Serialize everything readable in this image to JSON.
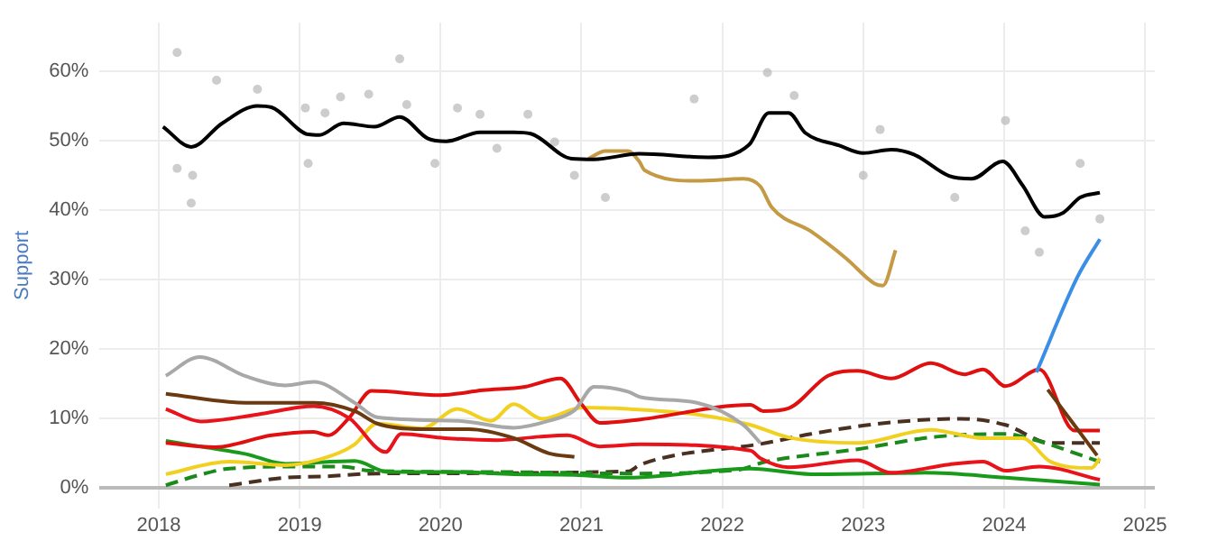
{
  "chart_data": {
    "type": "line",
    "ylabel": "Support",
    "xlim": [
      2017.58,
      2025.07
    ],
    "ylim": [
      -3,
      67
    ],
    "xticks": [
      2018,
      2019,
      2020,
      2021,
      2022,
      2023,
      2024,
      2025
    ],
    "yticks": [
      {
        "value": 0,
        "label": "0%"
      },
      {
        "value": 10,
        "label": "10%"
      },
      {
        "value": 20,
        "label": "20%"
      },
      {
        "value": 30,
        "label": "30%"
      },
      {
        "value": 40,
        "label": "40%"
      },
      {
        "value": 50,
        "label": "50%"
      },
      {
        "value": 60,
        "label": "60%"
      }
    ],
    "grid": true,
    "legend": false,
    "marker": "none",
    "series": [
      {
        "type": "scatter",
        "marker": "circle",
        "color": "#b4b4b4",
        "x": [
          2018.13,
          2018.13,
          2018.23,
          2018.24,
          2018.41,
          2018.7,
          2019.04,
          2019.06,
          2019.18,
          2019.29,
          2019.49,
          2019.71,
          2019.76,
          2019.96,
          2020.12,
          2020.28,
          2020.4,
          2020.62,
          2020.81,
          2020.95,
          2021.17,
          2021.8,
          2022.32,
          2022.51,
          2023.0,
          2023.12,
          2023.65,
          2024.01,
          2024.15,
          2024.25,
          2024.54,
          2024.68
        ],
        "values": [
          62.7,
          46.0,
          41.0,
          45.0,
          58.7,
          57.4,
          54.7,
          46.7,
          54.0,
          56.3,
          56.7,
          61.8,
          55.2,
          46.7,
          54.7,
          53.8,
          48.9,
          53.8,
          49.8,
          45.0,
          41.8,
          56.0,
          59.8,
          56.5,
          45.0,
          51.6,
          41.8,
          52.9,
          37.0,
          33.9,
          46.7,
          38.7
        ]
      },
      {
        "color": "#000000",
        "x": [
          2018.03,
          2018.23,
          2018.45,
          2018.7,
          2018.8,
          2019.06,
          2019.14,
          2019.31,
          2019.53,
          2019.71,
          2019.91,
          2020.04,
          2020.28,
          2020.52,
          2020.64,
          2020.93,
          2021.09,
          2021.41,
          2021.9,
          2022.19,
          2022.33,
          2022.47,
          2022.59,
          2022.83,
          2023.0,
          2023.2,
          2023.36,
          2023.61,
          2023.77,
          2023.99,
          2024.13,
          2024.29,
          2024.42,
          2024.54,
          2024.68
        ],
        "values": [
          52.0,
          49.1,
          52.5,
          55.0,
          54.8,
          50.9,
          50.8,
          52.5,
          52.0,
          53.4,
          50.3,
          49.9,
          51.2,
          51.2,
          51.0,
          47.4,
          47.3,
          48.1,
          47.6,
          49.4,
          54.0,
          54.0,
          51.1,
          49.3,
          48.2,
          48.7,
          48.0,
          44.9,
          44.5,
          47.0,
          43.6,
          39.0,
          39.6,
          41.8,
          42.5
        ]
      },
      {
        "color": "#c49a45",
        "x": [
          2021.05,
          2021.17,
          2021.33,
          2021.41,
          2021.45,
          2021.82,
          2022.15,
          2022.27,
          2022.35,
          2022.63,
          2022.88,
          2023.08,
          2023.14,
          2023.23
        ],
        "values": [
          47.4,
          48.5,
          48.5,
          47.0,
          45.7,
          44.2,
          44.5,
          43.4,
          40.4,
          36.9,
          33.0,
          29.4,
          29.1,
          34.2
        ]
      },
      {
        "color": "#3a8ee6",
        "x": [
          2024.23,
          2024.52,
          2024.68
        ],
        "values": [
          16.6,
          30.3,
          35.8
        ]
      },
      {
        "color": "#a8a8a8",
        "x": [
          2018.05,
          2018.29,
          2018.62,
          2018.9,
          2019.1,
          2019.39,
          2019.55,
          2020.12,
          2020.52,
          2020.77,
          2020.95,
          2021.09,
          2021.33,
          2021.42,
          2021.82,
          2022.15,
          2022.27
        ],
        "values": [
          16.1,
          18.8,
          16.0,
          14.7,
          15.2,
          12.2,
          10.1,
          9.6,
          8.6,
          9.6,
          11.1,
          14.5,
          13.8,
          13.0,
          12.2,
          9.0,
          6.4
        ]
      },
      {
        "color": "#6b3a10",
        "x": [
          2018.05,
          2018.62,
          2019.1,
          2019.39,
          2019.55,
          2019.87,
          2020.2,
          2020.52,
          2020.77,
          2020.95,
          2022.6,
          2024.31,
          2024.66
        ],
        "values": [
          13.5,
          12.2,
          12.2,
          11.0,
          9.2,
          8.4,
          8.4,
          7.1,
          4.9,
          4.4,
          null,
          14.1,
          4.6
        ]
      },
      {
        "color": "#e8131b",
        "x": [
          2018.05,
          2018.3,
          2018.7,
          2019.1,
          2019.35,
          2019.61,
          2019.72,
          2020.03,
          2020.4,
          2020.7,
          2020.9,
          2021.13,
          2021.42,
          2022.2,
          2022.27,
          2022.47,
          2022.96,
          2023.2,
          2023.61,
          2023.85,
          2024.01,
          2024.25,
          2024.68
        ],
        "values": [
          11.3,
          9.5,
          10.5,
          11.7,
          10.0,
          5.1,
          7.7,
          7.1,
          6.8,
          7.3,
          7.5,
          5.9,
          6.2,
          5.3,
          4.2,
          2.9,
          3.9,
          2.1,
          3.3,
          3.7,
          2.4,
          3.0,
          1.1
        ]
      },
      {
        "color": "#e01010",
        "x": [
          2018.05,
          2018.4,
          2018.8,
          2019.1,
          2019.2,
          2019.35,
          2019.51,
          2020.0,
          2020.3,
          2020.6,
          2020.85,
          2021.0,
          2021.13,
          2021.42,
          2022.2,
          2022.29,
          2022.47,
          2022.75,
          2022.96,
          2023.2,
          2023.48,
          2023.72,
          2023.85,
          2024.01,
          2024.25,
          2024.5,
          2024.68
        ],
        "values": [
          6.4,
          5.8,
          7.5,
          8.0,
          7.5,
          10.0,
          13.9,
          13.3,
          14.0,
          14.5,
          15.7,
          12.0,
          9.3,
          9.8,
          11.9,
          11.0,
          11.4,
          16.1,
          16.8,
          15.7,
          17.9,
          16.3,
          17.0,
          14.6,
          17.0,
          8.2,
          8.2
        ]
      },
      {
        "color": "#f2d022",
        "x": [
          2018.05,
          2018.5,
          2018.9,
          2019.23,
          2019.39,
          2019.55,
          2019.87,
          2020.12,
          2020.36,
          2020.52,
          2020.72,
          2021.01,
          2021.33,
          2021.82,
          2022.2,
          2022.47,
          2022.96,
          2023.48,
          2023.85,
          2024.13,
          2024.33,
          2024.62,
          2024.68
        ],
        "values": [
          1.9,
          3.7,
          3.2,
          4.6,
          6.2,
          9.2,
          8.5,
          11.3,
          9.6,
          12.0,
          9.9,
          11.5,
          11.3,
          10.5,
          9.0,
          7.2,
          6.4,
          8.3,
          7.1,
          7.1,
          3.7,
          2.8,
          4.2
        ]
      },
      {
        "color": "#1a9a1a",
        "x": [
          2018.05,
          2018.29,
          2018.62,
          2018.9,
          2019.39,
          2019.63,
          2020.12,
          2020.52,
          2020.95,
          2021.33,
          2022.2,
          2022.63,
          2023.44,
          2024.01,
          2024.68
        ],
        "values": [
          6.7,
          5.9,
          4.8,
          3.4,
          3.8,
          2.2,
          2.2,
          1.9,
          1.8,
          1.4,
          2.7,
          1.9,
          2.1,
          1.4,
          0.4
        ]
      },
      {
        "color": "#1a8a1a",
        "line_style": "dashed",
        "x": [
          2018.05,
          2018.29,
          2018.5,
          2019.0,
          2019.3,
          2019.5,
          2020.5,
          2021.33,
          2022.1,
          2022.31,
          2022.96,
          2023.52,
          2024.01,
          2024.17,
          2024.68
        ],
        "values": [
          0.3,
          1.8,
          2.7,
          3.0,
          3.0,
          2.4,
          2.2,
          2.0,
          2.5,
          3.7,
          5.5,
          7.3,
          7.7,
          7.1,
          3.7
        ]
      },
      {
        "color": "#4a3020",
        "line_style": "dashed",
        "x": [
          2018.5,
          2018.9,
          2019.19,
          2019.55,
          2021.33,
          2021.42,
          2022.31,
          2022.63,
          2023.12,
          2023.69,
          2024.01,
          2024.33,
          2024.68
        ],
        "values": [
          0.3,
          1.4,
          1.6,
          2.0,
          2.3,
          3.3,
          6.4,
          7.7,
          9.2,
          9.9,
          9.0,
          6.4,
          6.4
        ]
      }
    ]
  }
}
